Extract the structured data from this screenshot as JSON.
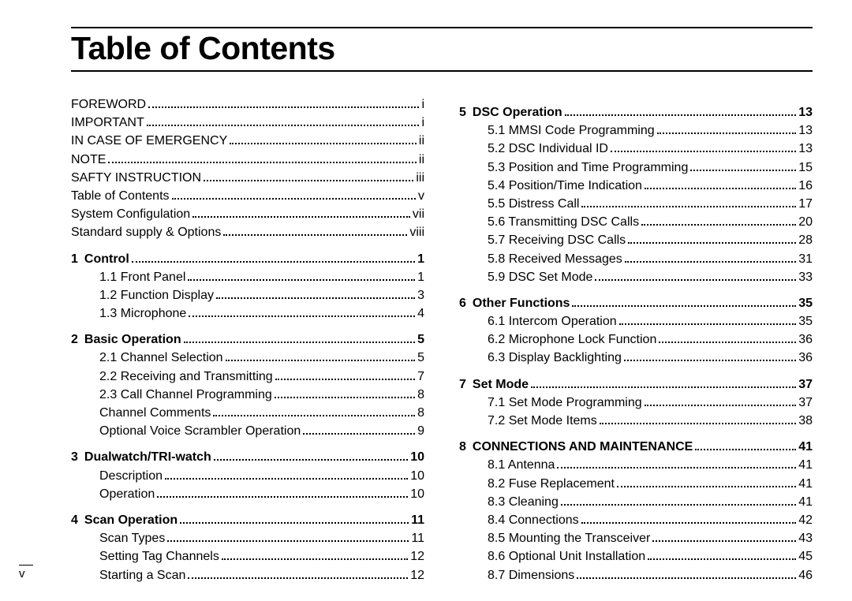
{
  "title": "Table of Contents",
  "page_number": "v",
  "colors": {
    "text": "#000000",
    "background": "#ffffff",
    "rule": "#000000"
  },
  "typography": {
    "title_fontsize": 41,
    "title_weight": 900,
    "body_fontsize": 16,
    "line_height": 1.45,
    "section_weight": 900
  },
  "front_matter": [
    {
      "label": "FOREWORD",
      "page": "i"
    },
    {
      "label": "IMPORTANT",
      "page": "i"
    },
    {
      "label": "IN CASE OF EMERGENCY",
      "page": "ii"
    },
    {
      "label": "NOTE",
      "page": "ii"
    },
    {
      "label": "SAFTY INSTRUCTION",
      "page": "iii"
    },
    {
      "label": "Table of Contents",
      "page": "v"
    },
    {
      "label": "System Configulation",
      "page": "vii"
    },
    {
      "label": "Standard supply & Options",
      "page": "viii"
    }
  ],
  "sections": [
    {
      "num": "1",
      "title": "Control",
      "page": "1",
      "items": [
        {
          "num": "1.1",
          "label": "Front Panel",
          "page": "1"
        },
        {
          "num": "1.2",
          "label": "Function Display",
          "page": "3"
        },
        {
          "num": "1.3",
          "label": "Microphone",
          "page": "4"
        }
      ]
    },
    {
      "num": "2",
      "title": "Basic Operation",
      "page": "5",
      "items": [
        {
          "num": "2.1",
          "label": "Channel Selection",
          "page": "5"
        },
        {
          "num": "2.2",
          "label": "Receiving and Transmitting",
          "page": "7"
        },
        {
          "num": "2.3",
          "label": "Call Channel Programming",
          "page": "8"
        },
        {
          "num": "",
          "label": "Channel Comments",
          "page": "8"
        },
        {
          "num": "",
          "label": "Optional Voice Scrambler Operation",
          "page": "9"
        }
      ]
    },
    {
      "num": "3",
      "title": "Dualwatch/TRI-watch",
      "page": "10",
      "items": [
        {
          "num": "",
          "label": "Description",
          "page": "10"
        },
        {
          "num": "",
          "label": "Operation",
          "page": "10"
        }
      ]
    },
    {
      "num": "4",
      "title": "Scan Operation",
      "page": "11",
      "items": [
        {
          "num": "",
          "label": "Scan Types",
          "page": "11"
        },
        {
          "num": "",
          "label": "Setting Tag Channels",
          "page": "12"
        },
        {
          "num": "",
          "label": "Starting a Scan",
          "page": "12"
        }
      ]
    },
    {
      "num": "5",
      "title": "DSC Operation",
      "page": "13",
      "items": [
        {
          "num": "5.1",
          "label": "MMSI Code Programming",
          "page": "13"
        },
        {
          "num": "5.2",
          "label": "DSC Individual ID",
          "page": "13"
        },
        {
          "num": "5.3",
          "label": "Position and Time Programming",
          "page": "15"
        },
        {
          "num": "5.4",
          "label": "Position/Time Indication",
          "page": "16"
        },
        {
          "num": "5.5",
          "label": "Distress Call",
          "page": "17"
        },
        {
          "num": "5.6",
          "label": "Transmitting DSC Calls",
          "page": "20"
        },
        {
          "num": "5.7",
          "label": "Receiving DSC Calls",
          "page": "28"
        },
        {
          "num": "5.8",
          "label": "Received Messages",
          "page": "31"
        },
        {
          "num": "5.9",
          "label": "DSC Set Mode",
          "page": "33"
        }
      ]
    },
    {
      "num": "6",
      "title": "Other Functions",
      "page": "35",
      "items": [
        {
          "num": "6.1",
          "label": "Intercom Operation",
          "page": "35"
        },
        {
          "num": "6.2",
          "label": "Microphone Lock Function",
          "page": "36"
        },
        {
          "num": "6.3",
          "label": "Display Backlighting",
          "page": "36"
        }
      ]
    },
    {
      "num": "7",
      "title": "Set Mode",
      "page": "37",
      "items": [
        {
          "num": "7.1",
          "label": "Set Mode Programming",
          "page": "37"
        },
        {
          "num": "7.2",
          "label": "Set Mode Items",
          "page": "38"
        }
      ]
    },
    {
      "num": "8",
      "title": "CONNECTIONS AND MAINTENANCE",
      "page": "41",
      "items": [
        {
          "num": "8.1",
          "label": "Antenna",
          "page": "41"
        },
        {
          "num": "8.2",
          "label": "Fuse Replacement",
          "page": "41"
        },
        {
          "num": "8.3",
          "label": "Cleaning",
          "page": "41"
        },
        {
          "num": "8.4",
          "label": "Connections",
          "page": "42"
        },
        {
          "num": "8.5",
          "label": "Mounting the Transceiver",
          "page": "43"
        },
        {
          "num": "8.6",
          "label": "Optional Unit Installation",
          "page": "45"
        },
        {
          "num": "8.7",
          "label": "Dimensions",
          "page": "46"
        }
      ]
    }
  ]
}
